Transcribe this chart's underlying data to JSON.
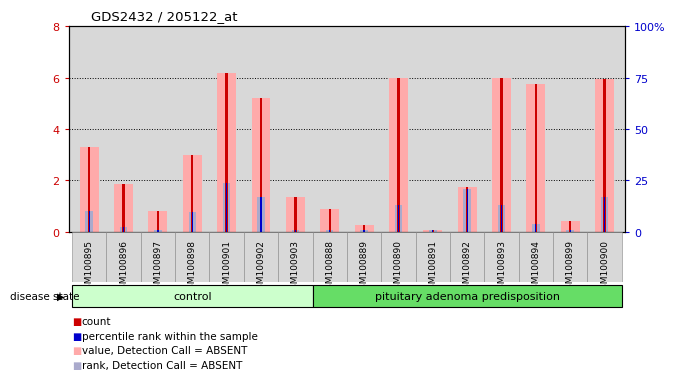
{
  "title": "GDS2432 / 205122_at",
  "samples": [
    "GSM100895",
    "GSM100896",
    "GSM100897",
    "GSM100898",
    "GSM100901",
    "GSM100902",
    "GSM100903",
    "GSM100888",
    "GSM100889",
    "GSM100890",
    "GSM100891",
    "GSM100892",
    "GSM100893",
    "GSM100894",
    "GSM100899",
    "GSM100900"
  ],
  "absent_value_bars": [
    3.3,
    1.85,
    0.8,
    3.0,
    6.2,
    5.2,
    1.35,
    0.9,
    0.25,
    6.0,
    0.05,
    1.75,
    6.0,
    5.75,
    0.4,
    5.95
  ],
  "absent_rank_bars": [
    0.8,
    0.2,
    0.05,
    0.75,
    1.9,
    1.35,
    0.05,
    0.05,
    0.05,
    1.05,
    0.05,
    1.65,
    1.05,
    0.3,
    0.05,
    1.35
  ],
  "count_values": [
    3.3,
    1.85,
    0.8,
    3.0,
    6.2,
    5.2,
    1.35,
    0.9,
    0.25,
    6.0,
    0.05,
    1.75,
    6.0,
    5.75,
    0.4,
    5.95
  ],
  "percentile_values": [
    0.8,
    0.2,
    0.05,
    0.75,
    1.9,
    1.35,
    0.05,
    0.05,
    0.05,
    1.05,
    0.05,
    1.65,
    1.05,
    0.3,
    0.05,
    1.35
  ],
  "n_control": 7,
  "n_total": 16,
  "group_labels": [
    "control",
    "pituitary adenoma predisposition"
  ],
  "ylim_left": [
    0,
    8
  ],
  "ylim_right": [
    0,
    100
  ],
  "yticks_left": [
    0,
    2,
    4,
    6,
    8
  ],
  "ytick_labels_left": [
    "0",
    "2",
    "4",
    "6",
    "8"
  ],
  "yticks_right": [
    0,
    25,
    50,
    75,
    100
  ],
  "ytick_labels_right": [
    "0",
    "25",
    "50",
    "75",
    "100%"
  ],
  "color_count": "#cc0000",
  "color_percentile": "#0000cc",
  "color_absent_value": "#ffaaaa",
  "color_absent_rank": "#aaaacc",
  "color_control_bg": "#ccffcc",
  "color_disease_bg": "#66dd66",
  "bg_color": "#d8d8d8",
  "disease_state_label": "disease state"
}
